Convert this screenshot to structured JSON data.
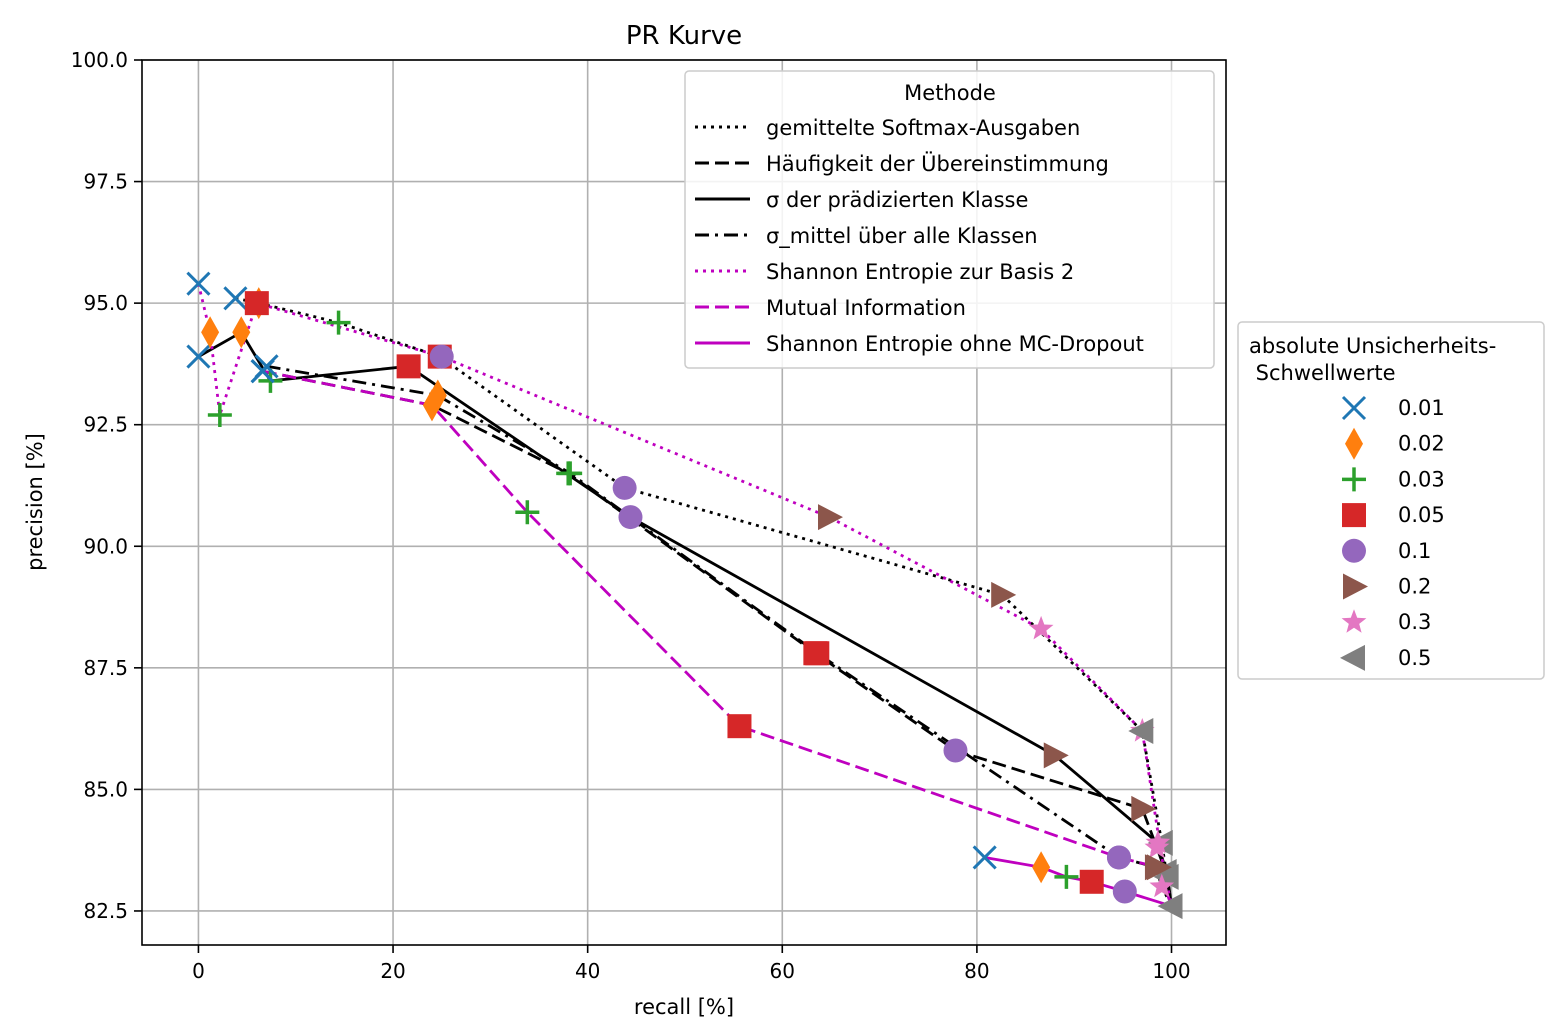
{
  "chart_data": {
    "type": "line",
    "title": "PR Kurve",
    "xlabel": "recall [%]",
    "ylabel": "precision [%]",
    "xlim": [
      -5.8,
      105.6
    ],
    "ylim": [
      81.8,
      100.0
    ],
    "xticks": [
      0,
      20,
      40,
      60,
      80,
      100
    ],
    "xtick_labels": [
      "0",
      "20",
      "40",
      "60",
      "80",
      "100"
    ],
    "yticks": [
      82.5,
      85.0,
      87.5,
      90.0,
      92.5,
      95.0,
      97.5,
      100.0
    ],
    "ytick_labels": [
      "82.5",
      "85.0",
      "87.5",
      "90.0",
      "92.5",
      "95.0",
      "97.5",
      "100.0"
    ],
    "grid": true,
    "legend_methods": {
      "title": "Methode",
      "placement": "top-right",
      "entries": [
        "gemittelte Softmax-Ausgaben",
        "Häufigkeit der Übereinstimmung",
        "σ der prädizierten Klasse",
        "σ_mittel über alle Klassen",
        "Shannon Entropie zur Basis 2",
        "Mutual Information",
        "Shannon Entropie ohne MC-Dropout"
      ]
    },
    "legend_thresholds": {
      "title_lines": [
        "absolute Unsicherheits-",
        " Schwellwerte"
      ],
      "placement": "outside-right",
      "entries": [
        "0.01",
        "0.02",
        "0.03",
        "0.05",
        "0.1",
        "0.2",
        "0.3",
        "0.5"
      ]
    },
    "markers": {
      "0.01": {
        "shape": "x",
        "color": "#1f77b4"
      },
      "0.02": {
        "shape": "thin_diamond",
        "color": "#ff7f0e"
      },
      "0.03": {
        "shape": "plus",
        "color": "#2ca02c"
      },
      "0.05": {
        "shape": "square",
        "color": "#d62728"
      },
      "0.1": {
        "shape": "circle",
        "color": "#9467bd"
      },
      "0.2": {
        "shape": "triangle-right",
        "color": "#8c564b"
      },
      "0.3": {
        "shape": "star",
        "color": "#e377c2"
      },
      "0.5": {
        "shape": "triangle-left",
        "color": "#7f7f7f"
      }
    },
    "series": [
      {
        "name": "gemittelte Softmax-Ausgaben",
        "color": "#000000",
        "linestyle": "dotted",
        "x": [
          3.8,
          6.2,
          14.4,
          24.8,
          43.8,
          82.6,
          97.0,
          99.0,
          100.0
        ],
        "y": [
          95.1,
          95.0,
          94.6,
          93.9,
          91.2,
          89.0,
          86.2,
          83.9,
          82.6
        ],
        "thresholds": [
          "0.01",
          "0.02",
          "0.03",
          "0.05",
          "0.1",
          "0.2",
          "0.3",
          "0.5",
          ""
        ]
      },
      {
        "name": "Häufigkeit der Übereinstimmung",
        "color": "#000000",
        "linestyle": "dashed",
        "x": [
          6.6,
          24.0,
          38.0,
          63.4,
          77.8,
          97.0,
          98.5,
          99.4,
          100.0
        ],
        "y": [
          93.6,
          92.9,
          91.5,
          87.8,
          85.8,
          84.6,
          83.8,
          83.3,
          82.6
        ],
        "thresholds": [
          "0.01",
          "0.02",
          "0.03",
          "0.05",
          "0.1",
          "0.2",
          "0.3",
          "0.5",
          ""
        ]
      },
      {
        "name": "σ der prädizierten Klasse",
        "color": "#000000",
        "linestyle": "solid",
        "x": [
          0.0,
          4.4,
          7.4,
          21.6,
          44.4,
          88.0,
          98.6,
          99.6,
          100.0
        ],
        "y": [
          93.9,
          94.4,
          93.4,
          93.7,
          90.6,
          85.7,
          83.9,
          83.2,
          82.6
        ],
        "thresholds": [
          "0.01",
          "0.02",
          "0.03",
          "0.05",
          "0.1",
          "0.2",
          "0.3",
          "0.5",
          ""
        ]
      },
      {
        "name": "σ_mittel über alle Klassen",
        "color": "#000000",
        "linestyle": "dashdot",
        "x": [
          7.0,
          24.6,
          38.2,
          63.6,
          94.6,
          98.4,
          99.0,
          100.0
        ],
        "y": [
          93.7,
          93.1,
          91.5,
          87.8,
          83.6,
          83.4,
          83.0,
          82.6
        ],
        "thresholds": [
          "0.01",
          "0.02",
          "0.03",
          "0.05",
          "0.1",
          "0.2",
          "0.3",
          ""
        ]
      },
      {
        "name": "Shannon Entropie zur Basis 2",
        "color": "#bf00bf",
        "linestyle": "dotted",
        "x": [
          0.0,
          1.2,
          2.2,
          6.0,
          25.0,
          64.8,
          86.6,
          97.0,
          99.0,
          100.0
        ],
        "y": [
          95.4,
          94.4,
          92.7,
          95.0,
          93.9,
          90.6,
          88.3,
          86.2,
          83.6,
          82.6
        ],
        "thresholds": [
          "0.01",
          "0.02",
          "0.03",
          "0.05",
          "0.1",
          "0.2",
          "0.3",
          "0.5",
          "",
          ""
        ]
      },
      {
        "name": "Mutual Information",
        "color": "#bf00bf",
        "linestyle": "dashed",
        "x": [
          6.6,
          24.0,
          33.8,
          55.6,
          94.6,
          98.6,
          100.0
        ],
        "y": [
          93.6,
          92.9,
          90.7,
          86.3,
          83.6,
          83.4,
          82.6
        ],
        "thresholds": [
          "0.01",
          "0.02",
          "0.03",
          "0.05",
          "0.1",
          "0.2",
          ""
        ]
      },
      {
        "name": "Shannon Entropie ohne MC-Dropout",
        "color": "#bf00bf",
        "linestyle": "solid",
        "x": [
          80.8,
          86.6,
          89.2,
          91.8,
          95.2,
          100.0
        ],
        "y": [
          83.6,
          83.4,
          83.2,
          83.1,
          82.9,
          82.6
        ],
        "thresholds": [
          "0.01",
          "0.02",
          "0.03",
          "0.05",
          "0.1",
          "0.5"
        ]
      }
    ]
  }
}
